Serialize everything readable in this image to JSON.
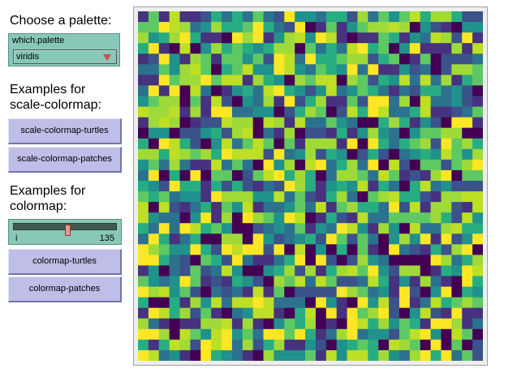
{
  "headings": {
    "choose_palette": "Choose a palette:",
    "scale_examples_line1": "Examples for",
    "scale_examples_line2": "scale-colormap:",
    "colormap_examples_line1": "Examples for",
    "colormap_examples_line2": "colormap:"
  },
  "chooser": {
    "label": "which.palette",
    "value": "viridis"
  },
  "buttons": {
    "scale_turtles": "scale-colormap-turtles",
    "scale_patches": "scale-colormap-patches",
    "colormap_turtles": "colormap-turtles",
    "colormap_patches": "colormap-patches"
  },
  "slider": {
    "name": "i",
    "value": "135",
    "min": 0,
    "max": 255,
    "current": 135
  },
  "palette_colors": [
    "#440154",
    "#3b528b",
    "#21918c",
    "#5ec962",
    "#a0da39",
    "#fde725",
    "#46327e",
    "#2c728e",
    "#27ad81",
    "#bddf26"
  ]
}
